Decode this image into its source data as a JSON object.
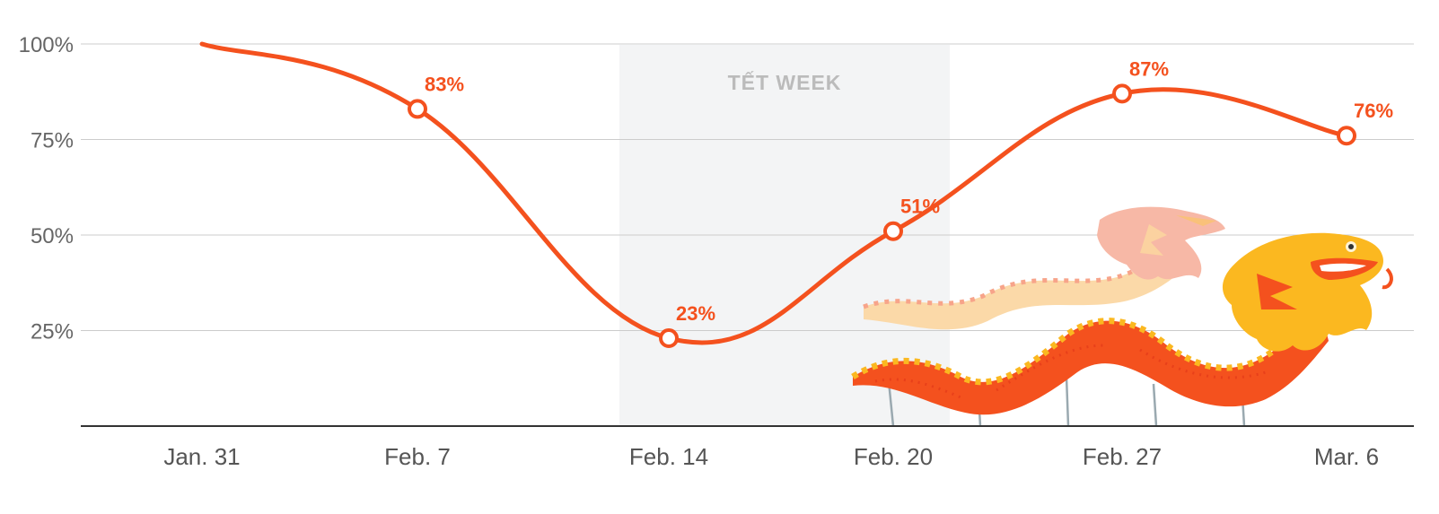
{
  "chart_data": {
    "type": "line",
    "x": [
      "Jan. 31",
      "Feb. 7",
      "Feb. 14",
      "Feb. 20",
      "Feb. 27",
      "Mar. 6"
    ],
    "series": [
      {
        "values": [
          100,
          83,
          23,
          51,
          87,
          76
        ],
        "point_labels": [
          "",
          "83%",
          "23%",
          "51%",
          "87%",
          "76%"
        ]
      }
    ],
    "ylim": [
      0,
      100
    ],
    "yticks": [
      25,
      50,
      75,
      100
    ],
    "ytick_labels": [
      "25%",
      "50%",
      "75%",
      "100%"
    ],
    "highlight_band": {
      "label": "TẾT WEEK",
      "from": "Feb. 14",
      "to": "Feb. 20"
    },
    "grid": true,
    "colors": {
      "line": "#f4511e",
      "label": "#f4511e",
      "grid": "#cccccc",
      "axis": "#333333",
      "band": "#f3f4f5",
      "dragon_red": "#f4511e",
      "dragon_yellow": "#fbb820",
      "dragon_pale": "#fad7b8"
    }
  }
}
